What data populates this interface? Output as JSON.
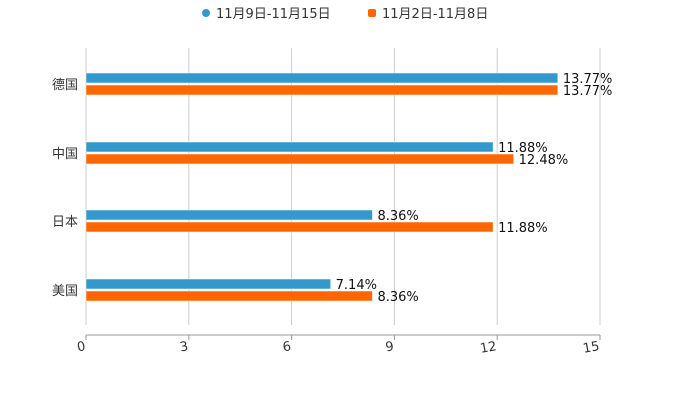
{
  "chart_data": {
    "type": "bar",
    "orientation": "horizontal",
    "categories": [
      "德国",
      "中国",
      "日本",
      "美国"
    ],
    "series": [
      {
        "name": "11月9日-11月15日",
        "color": "#3399cc",
        "values": [
          13.77,
          11.88,
          8.36,
          7.14
        ],
        "labels": [
          "13.77%",
          "11.88%",
          "8.36%",
          "7.14%"
        ]
      },
      {
        "name": "11月2日-11月8日",
        "color": "#ff6600",
        "values": [
          13.77,
          12.48,
          11.88,
          8.36
        ],
        "labels": [
          "13.77%",
          "12.48%",
          "11.88%",
          "8.36%"
        ]
      }
    ],
    "xlim": [
      0,
      15
    ],
    "xticks": [
      "0",
      "3",
      "6",
      "9",
      "12",
      "15"
    ],
    "grid": true,
    "legend_position": "top-center",
    "title": "",
    "xlabel": "",
    "ylabel": ""
  }
}
